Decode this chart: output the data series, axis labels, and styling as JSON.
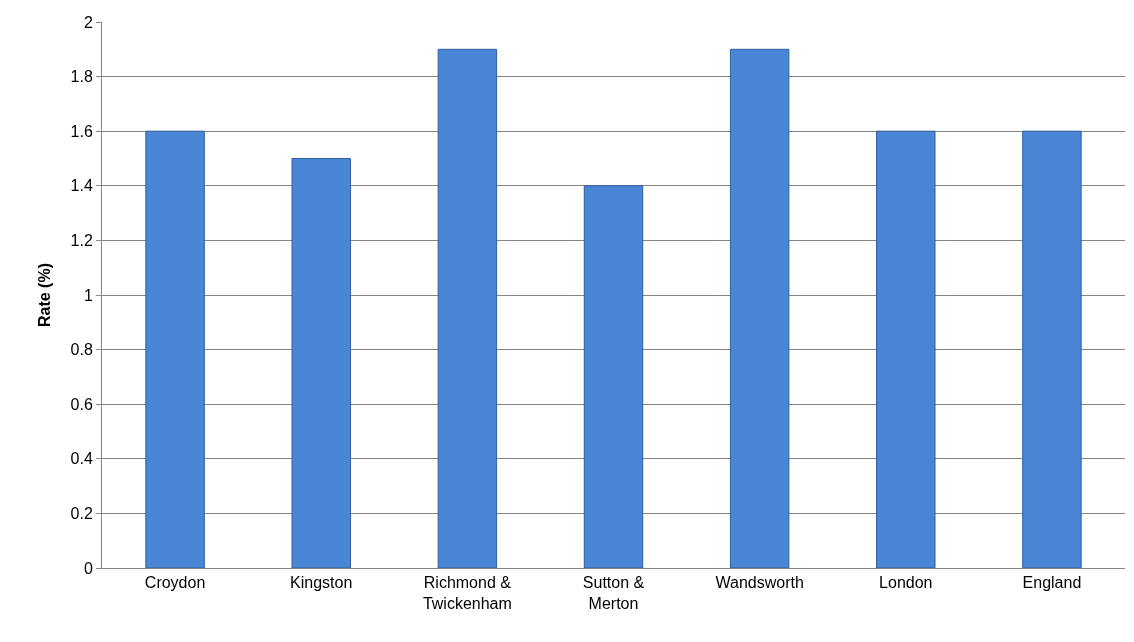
{
  "chart_data": {
    "type": "bar",
    "ylabel": "Rate (%)",
    "categories": [
      "Croydon",
      "Kingston",
      "Richmond &\nTwickenham",
      "Sutton &\nMerton",
      "Wandsworth",
      "London",
      "England"
    ],
    "values": [
      1.6,
      1.5,
      1.9,
      1.4,
      1.9,
      1.6,
      1.6
    ],
    "color": "#4a86d6",
    "ylim": [
      0,
      2
    ],
    "yticks": [
      0,
      0.2,
      0.4,
      0.6,
      0.8,
      1,
      1.2,
      1.4,
      1.6,
      1.8,
      2
    ],
    "grid": "y"
  }
}
